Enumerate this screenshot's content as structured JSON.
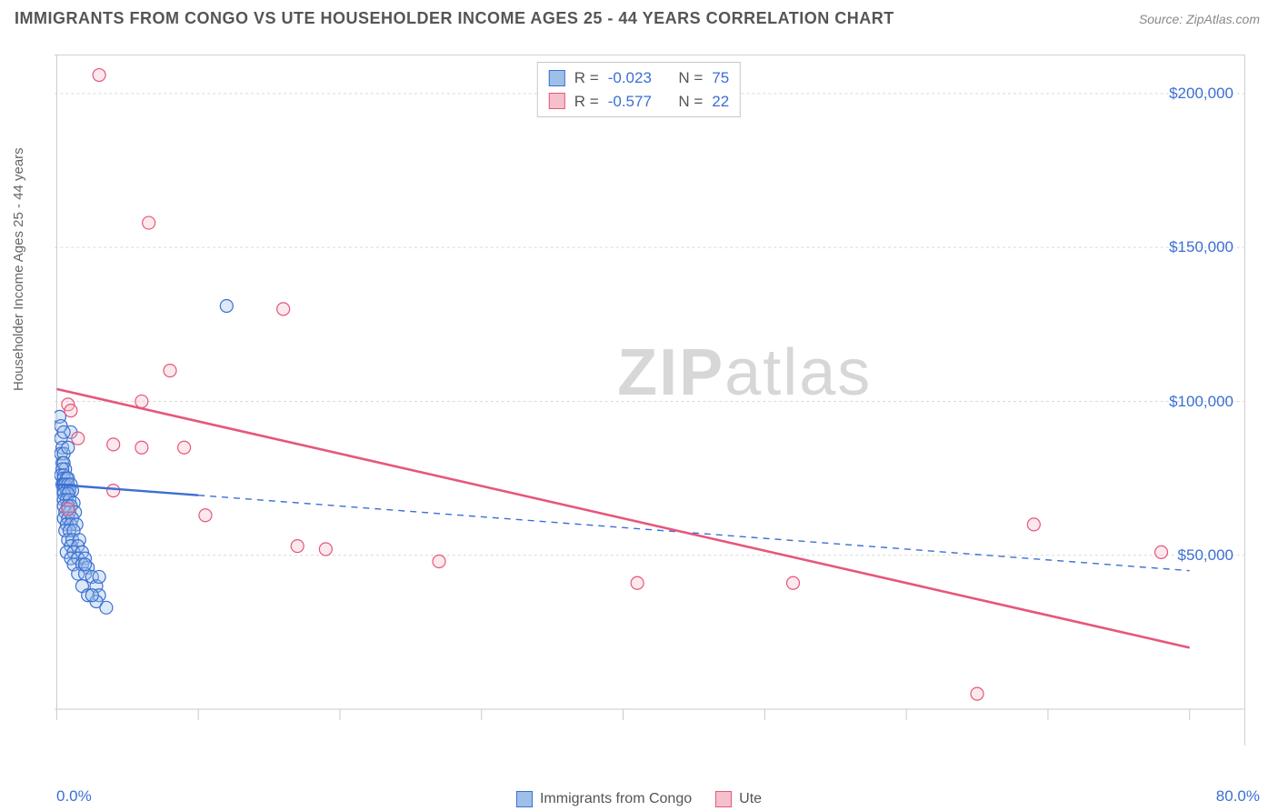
{
  "header": {
    "title": "IMMIGRANTS FROM CONGO VS UTE HOUSEHOLDER INCOME AGES 25 - 44 YEARS CORRELATION CHART",
    "source": "Source: ZipAtlas.com"
  },
  "chart": {
    "type": "scatter-with-regression",
    "ylabel": "Householder Income Ages 25 - 44 years",
    "xlim": [
      0,
      80
    ],
    "ylim": [
      0,
      210000
    ],
    "x_unit": "%",
    "y_unit": "$",
    "x_ticks": {
      "min_label": "0.0%",
      "max_label": "80.0%"
    },
    "y_tick_values": [
      50000,
      100000,
      150000,
      200000
    ],
    "y_tick_labels": [
      "$50,000",
      "$100,000",
      "$150,000",
      "$200,000"
    ],
    "grid_color": "#d9d9d9",
    "axis_color": "#c9c9c9",
    "background_color": "#ffffff",
    "marker_radius": 7,
    "marker_fill_opacity": 0.35,
    "marker_stroke_width": 1.2,
    "series": [
      {
        "key": "congo",
        "label": "Immigrants from Congo",
        "color_fill": "#9ebfe8",
        "color_stroke": "#3b6fd4",
        "R": "-0.023",
        "N": "75",
        "regression": {
          "y_at_x0": 73000,
          "y_at_x80": 45000,
          "dash_solid_until_x": 10,
          "stroke_width": 2.4
        },
        "points": [
          [
            0.2,
            95000
          ],
          [
            0.3,
            92000
          ],
          [
            0.3,
            88000
          ],
          [
            0.4,
            85000
          ],
          [
            0.3,
            83000
          ],
          [
            0.5,
            83000
          ],
          [
            0.4,
            80000
          ],
          [
            0.5,
            80000
          ],
          [
            0.6,
            78000
          ],
          [
            0.4,
            78000
          ],
          [
            0.3,
            76000
          ],
          [
            0.5,
            76000
          ],
          [
            0.5,
            75000
          ],
          [
            0.7,
            75000
          ],
          [
            0.8,
            75000
          ],
          [
            0.4,
            73000
          ],
          [
            0.5,
            73000
          ],
          [
            0.6,
            73000
          ],
          [
            0.8,
            73000
          ],
          [
            1.0,
            73000
          ],
          [
            0.5,
            71000
          ],
          [
            0.7,
            71000
          ],
          [
            0.9,
            71000
          ],
          [
            1.1,
            71000
          ],
          [
            0.5,
            70000
          ],
          [
            0.8,
            70000
          ],
          [
            0.5,
            68000
          ],
          [
            0.7,
            68000
          ],
          [
            0.9,
            68000
          ],
          [
            1.2,
            67000
          ],
          [
            0.5,
            66000
          ],
          [
            0.8,
            66000
          ],
          [
            1.0,
            66000
          ],
          [
            0.6,
            64000
          ],
          [
            0.9,
            64000
          ],
          [
            1.3,
            64000
          ],
          [
            0.5,
            62000
          ],
          [
            0.8,
            62000
          ],
          [
            1.1,
            62000
          ],
          [
            0.7,
            60000
          ],
          [
            1.0,
            60000
          ],
          [
            1.4,
            60000
          ],
          [
            0.6,
            58000
          ],
          [
            0.9,
            58000
          ],
          [
            1.2,
            58000
          ],
          [
            0.8,
            55000
          ],
          [
            1.1,
            55000
          ],
          [
            1.6,
            55000
          ],
          [
            1.0,
            53000
          ],
          [
            1.5,
            53000
          ],
          [
            0.7,
            51000
          ],
          [
            1.2,
            51000
          ],
          [
            1.8,
            51000
          ],
          [
            1.0,
            49000
          ],
          [
            1.5,
            49000
          ],
          [
            2.0,
            49000
          ],
          [
            1.2,
            47000
          ],
          [
            1.8,
            47000
          ],
          [
            2.2,
            46000
          ],
          [
            1.5,
            44000
          ],
          [
            2.0,
            44000
          ],
          [
            2.5,
            43000
          ],
          [
            1.8,
            40000
          ],
          [
            2.8,
            40000
          ],
          [
            2.2,
            37000
          ],
          [
            3.0,
            37000
          ],
          [
            2.8,
            35000
          ],
          [
            3.5,
            33000
          ],
          [
            3.0,
            43000
          ],
          [
            2.5,
            37000
          ],
          [
            12.0,
            131000
          ],
          [
            1.0,
            90000
          ],
          [
            0.8,
            85000
          ],
          [
            0.5,
            90000
          ],
          [
            2.0,
            47000
          ]
        ]
      },
      {
        "key": "ute",
        "label": "Ute",
        "color_fill": "#f5c0cc",
        "color_stroke": "#e6577a",
        "R": "-0.577",
        "N": "22",
        "regression": {
          "y_at_x0": 104000,
          "y_at_x80": 20000,
          "dash_solid_until_x": 80,
          "stroke_width": 2.6
        },
        "points": [
          [
            3.0,
            206000
          ],
          [
            6.5,
            158000
          ],
          [
            16.0,
            130000
          ],
          [
            8.0,
            110000
          ],
          [
            6.0,
            100000
          ],
          [
            0.8,
            99000
          ],
          [
            4.0,
            86000
          ],
          [
            6.0,
            85000
          ],
          [
            9.0,
            85000
          ],
          [
            4.0,
            71000
          ],
          [
            0.8,
            65000
          ],
          [
            10.5,
            63000
          ],
          [
            17.0,
            53000
          ],
          [
            19.0,
            52000
          ],
          [
            27.0,
            48000
          ],
          [
            41.0,
            41000
          ],
          [
            52.0,
            41000
          ],
          [
            69.0,
            60000
          ],
          [
            78.0,
            51000
          ],
          [
            65.0,
            5000
          ],
          [
            1.0,
            97000
          ],
          [
            1.5,
            88000
          ]
        ]
      }
    ],
    "watermark": {
      "bold": "ZIP",
      "rest": "atlas"
    },
    "tick_marks_x_count": 8
  }
}
